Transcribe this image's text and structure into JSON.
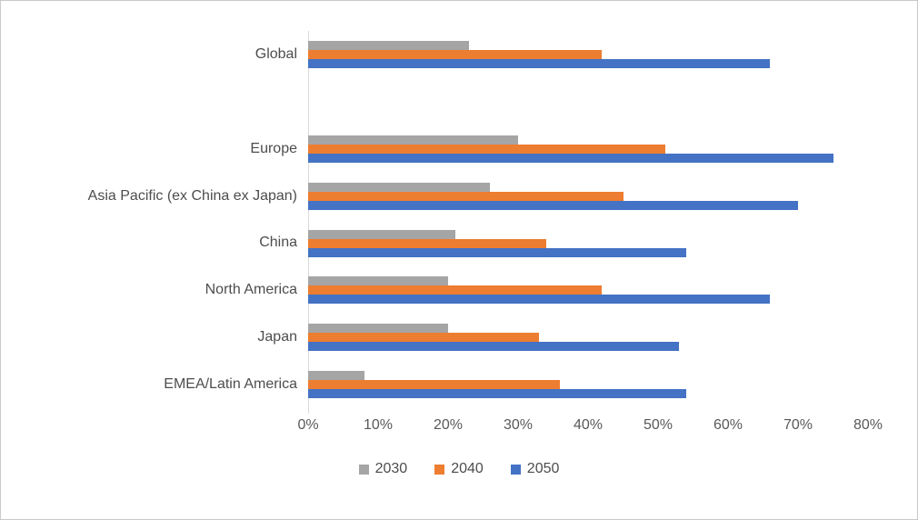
{
  "chart_data": {
    "type": "bar",
    "orientation": "horizontal",
    "title": "",
    "xlabel": "",
    "ylabel": "",
    "categories": [
      "Global",
      "",
      "Europe",
      "Asia Pacific (ex China ex Japan)",
      "China",
      "North America",
      "Japan",
      "EMEA/Latin America"
    ],
    "series": [
      {
        "name": "2030",
        "color": "#A5A5A5",
        "values": [
          23,
          null,
          30,
          26,
          21,
          20,
          20,
          8
        ]
      },
      {
        "name": "2040",
        "color": "#ED7D31",
        "values": [
          42,
          null,
          51,
          45,
          34,
          42,
          33,
          36
        ]
      },
      {
        "name": "2050",
        "color": "#4472C4",
        "values": [
          66,
          null,
          75,
          70,
          54,
          66,
          53,
          54
        ]
      }
    ],
    "x_axis": {
      "min": 0,
      "max": 80,
      "unit": "%",
      "tick_labels": [
        "0%",
        "10%",
        "20%",
        "30%",
        "40%",
        "50%",
        "60%",
        "70%",
        "80%"
      ]
    },
    "legend": {
      "labels": [
        "2030",
        "2040",
        "2050"
      ],
      "position": "bottom-center"
    },
    "grid": false,
    "axis_line_color": "#d9d9d9",
    "text_color": "#595959"
  }
}
